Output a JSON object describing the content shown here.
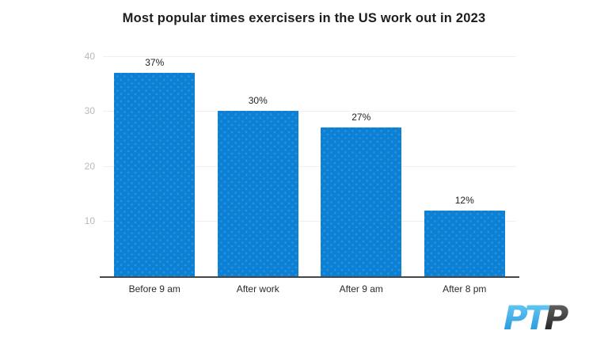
{
  "title": "Most popular times exercisers in the US work out in 2023",
  "chart_data": {
    "type": "bar",
    "title": "Most popular times exercisers in the US work out in 2023",
    "categories": [
      "Before 9 am",
      "After work",
      "After 9 am",
      "After 8 pm"
    ],
    "values": [
      37,
      30,
      27,
      12
    ],
    "value_labels": [
      "37%",
      "30%",
      "27%",
      "12%"
    ],
    "xlabel": "",
    "ylabel": "",
    "yticks": [
      10,
      20,
      30,
      40
    ],
    "ylim": [
      0,
      41
    ],
    "grid": true,
    "legend": "none",
    "bar_color": "#0b80d4"
  },
  "colors": {
    "bar": "#0b80d4",
    "grid": "#efefef",
    "axis": "#474747",
    "ytick_text": "#b9b9b9",
    "xlabel_text": "#2b2b2b",
    "title_text": "#1d1d1d",
    "logo_blue_top": "#6fd0f6",
    "logo_blue_bottom": "#1b8fdb",
    "logo_dark_top": "#6f6f6f",
    "logo_dark_bottom": "#161616"
  },
  "logo": {
    "blue_part": "PT",
    "dark_part": "P"
  }
}
